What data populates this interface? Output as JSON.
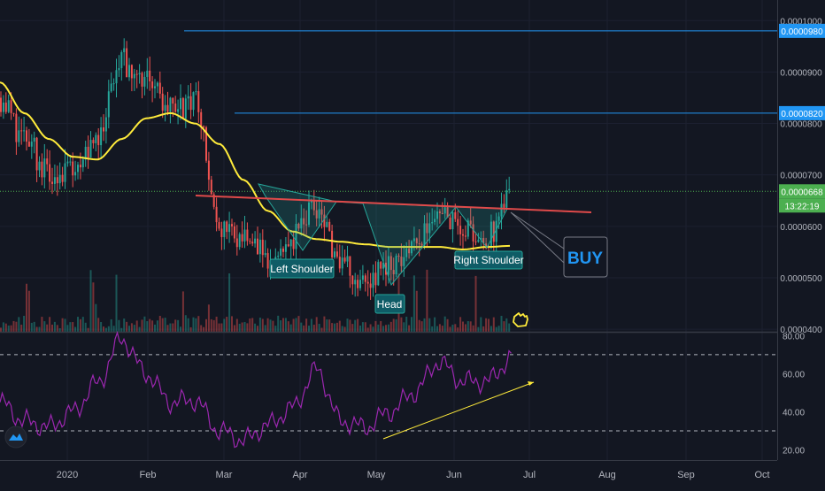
{
  "colors": {
    "background": "#131722",
    "up": "#26a69a",
    "down": "#ef5350",
    "ma": "#ffeb3b",
    "rsi": "#9c27b0",
    "resistance": "#2196f3",
    "current": "#4caf50",
    "neckline": "#e04a4a",
    "pattern": "#26a69a"
  },
  "price_axis": {
    "ticks": [
      "0.0001000",
      "0.0000900",
      "0.0000800",
      "0.0000700",
      "0.0000600",
      "0.0000500",
      "0.0000400"
    ],
    "labels": [
      {
        "text": "0.0000980",
        "value": 9.8e-05,
        "color": "#2196f3"
      },
      {
        "text": "0.0000820",
        "value": 8.2e-05,
        "color": "#2196f3"
      },
      {
        "text": "0.0000668",
        "value": 6.68e-05,
        "color": "#4caf50"
      }
    ],
    "countdown": "13:22:19"
  },
  "rsi_axis": {
    "ticks": [
      "80.00",
      "60.00",
      "40.00",
      "20.00"
    ]
  },
  "time_axis": {
    "ticks": [
      "2020",
      "Feb",
      "Mar",
      "Apr",
      "May",
      "Jun",
      "Jul",
      "Aug",
      "Sep",
      "Oct"
    ]
  },
  "annotations": {
    "left_shoulder": "Left Shoulder",
    "head": "Head",
    "right_shoulder": "Right Shoulder",
    "buy": "BUY"
  },
  "chart_data": [
    {
      "type": "line",
      "title": "",
      "kind": "candlestick with volume and moving average",
      "ylim": [
        3.95e-05,
        0.000104
      ],
      "x": [
        "Dec 9",
        "Dec 23",
        "Jan 6",
        "Jan 20",
        "Feb 3",
        "Feb 12",
        "Feb 17",
        "Mar 1",
        "Mar 9",
        "Mar 12",
        "Mar 20",
        "Apr 1",
        "Apr 15",
        "Apr 25",
        "May 1",
        "May 5",
        "May 15",
        "May 25",
        "Jun 1",
        "Jun 10",
        "Jun 18",
        "Jun 22"
      ],
      "series": [
        {
          "name": "",
          "values": [
            8.5e-05,
            7.7e-05,
            7e-05,
            7.2e-05,
            7.8e-05,
            9.2e-05,
            8.9e-05,
            8.3e-05,
            8.4e-05,
            6e-05,
            5.8e-05,
            5.4e-05,
            5.8e-05,
            6.4e-05,
            5.2e-05,
            5e-05,
            5.3e-05,
            5.6e-05,
            6.3e-05,
            6e-05,
            5.8e-05,
            6.68e-05
          ]
        },
        {
          "name": "",
          "values": [
            8.8e-05,
            8.2e-05,
            7.7e-05,
            7.35e-05,
            7.3e-05,
            7.7e-05,
            8.1e-05,
            8.2e-05,
            8e-05,
            7.6e-05,
            6.9e-05,
            6.3e-05,
            5.9e-05,
            5.75e-05,
            5.7e-05,
            5.65e-05,
            5.6e-05,
            5.6e-05,
            5.6e-05,
            5.55e-05,
            5.6e-05,
            5.62e-05
          ]
        }
      ],
      "resistance_levels": [
        9.8e-05,
        8.2e-05
      ],
      "current_price": 6.68e-05
    },
    {
      "type": "line",
      "title": "",
      "kind": "RSI",
      "ylim": [
        17,
        82
      ],
      "guides": [
        70,
        30
      ],
      "x": [
        "Dec 9",
        "Dec 23",
        "Jan 6",
        "Jan 20",
        "Feb 3",
        "Feb 12",
        "Feb 17",
        "Mar 1",
        "Mar 9",
        "Mar 12",
        "Mar 20",
        "Apr 1",
        "Apr 15",
        "Apr 25",
        "May 1",
        "May 5",
        "May 15",
        "May 25",
        "Jun 1",
        "Jun 10",
        "Jun 18",
        "Jun 22"
      ],
      "series": [
        {
          "name": "",
          "values": [
            45,
            35,
            32,
            40,
            55,
            78,
            60,
            45,
            46,
            30,
            25,
            33,
            42,
            62,
            35,
            32,
            40,
            50,
            66,
            56,
            56,
            68
          ]
        }
      ]
    }
  ]
}
